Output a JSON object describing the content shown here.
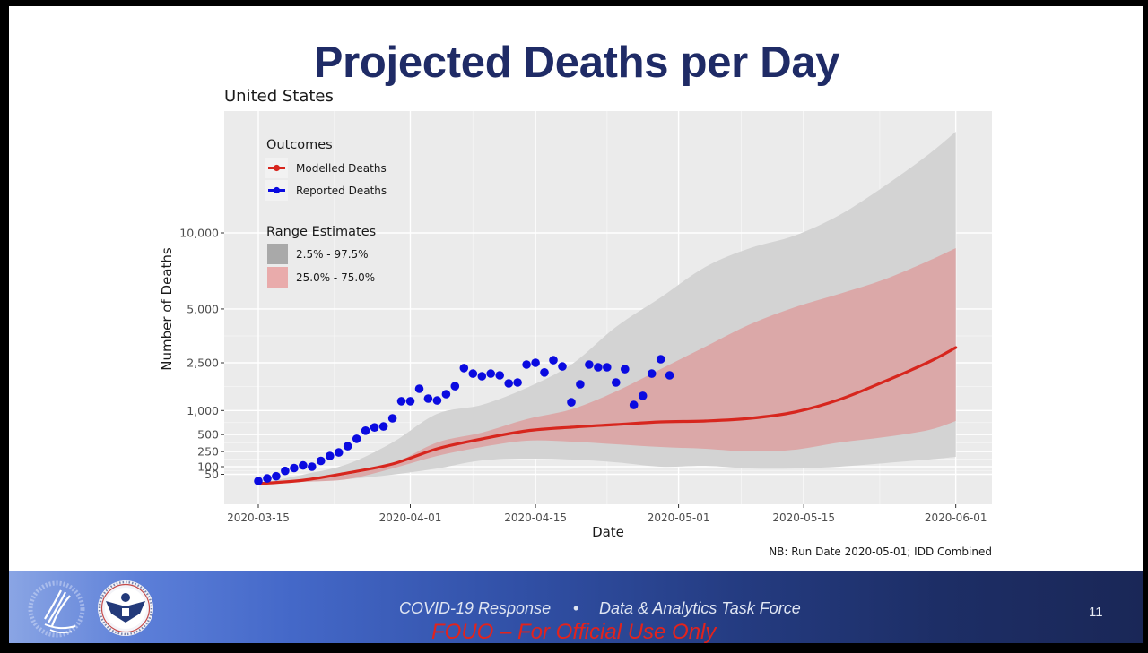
{
  "slide": {
    "title": "Projected Deaths per Day",
    "page_number": "11"
  },
  "footer": {
    "left_text": "COVID-19 Response",
    "separator": "•",
    "right_text": "Data & Analytics Task Force",
    "classification": "FOUO – For Official Use Only",
    "logos": [
      "hhs-logo",
      "dhs-seal"
    ]
  },
  "colors": {
    "title": "#1f2b66",
    "panel_background": "#ebebeb",
    "modelled_line": "#d7261e",
    "reported_points": "#0a0ae0",
    "band_2_5_97_5": "#d3d3d3",
    "band_25_75": "#dba8a8",
    "footer_dark": "#1a2757",
    "classification_red": "#e3231c"
  },
  "chart_data": {
    "type": "line",
    "title": "United States",
    "xlabel": "Date",
    "ylabel": "Number of Deaths",
    "caption": "NB: Run Date 2020-05-01; IDD Combined",
    "y_scale": "sqrt",
    "ylim": [
      0,
      21500
    ],
    "xlim": [
      "2020-03-11",
      "2020-06-05"
    ],
    "grid": true,
    "x_ticks": [
      {
        "value": "2020-03-15",
        "label": "2020-03-15"
      },
      {
        "value": "2020-04-01",
        "label": "2020-04-01"
      },
      {
        "value": "2020-04-15",
        "label": "2020-04-15"
      },
      {
        "value": "2020-05-01",
        "label": "2020-05-01"
      },
      {
        "value": "2020-05-15",
        "label": "2020-05-15"
      },
      {
        "value": "2020-06-01",
        "label": "2020-06-01"
      }
    ],
    "y_ticks": [
      {
        "value": 50,
        "label": "50"
      },
      {
        "value": 100,
        "label": "100"
      },
      {
        "value": 250,
        "label": "250"
      },
      {
        "value": 500,
        "label": "500"
      },
      {
        "value": 1000,
        "label": "1,000"
      },
      {
        "value": 2500,
        "label": "2,500"
      },
      {
        "value": 5000,
        "label": "5,000"
      },
      {
        "value": 10000,
        "label": "10,000"
      }
    ],
    "legend": {
      "placement": "top-left (inside plot)",
      "outcomes_title": "Outcomes",
      "outcomes": [
        {
          "label": "Modelled Deaths",
          "color": "#d7261e"
        },
        {
          "label": "Reported Deaths",
          "color": "#0a0ae0"
        }
      ],
      "ranges_title": "Range Estimates",
      "ranges": [
        {
          "label": "2.5% - 97.5%",
          "color": "#a9a9a9"
        },
        {
          "label": "25.0% - 75.0%",
          "color": "#e9abab"
        }
      ]
    },
    "series": [
      {
        "name": "Reported Deaths",
        "kind": "points",
        "x": [
          "2020-03-15",
          "2020-03-16",
          "2020-03-17",
          "2020-03-18",
          "2020-03-19",
          "2020-03-20",
          "2020-03-21",
          "2020-03-22",
          "2020-03-23",
          "2020-03-24",
          "2020-03-25",
          "2020-03-26",
          "2020-03-27",
          "2020-03-28",
          "2020-03-29",
          "2020-03-30",
          "2020-03-31",
          "2020-04-01",
          "2020-04-02",
          "2020-04-03",
          "2020-04-04",
          "2020-04-05",
          "2020-04-06",
          "2020-04-07",
          "2020-04-08",
          "2020-04-09",
          "2020-04-10",
          "2020-04-11",
          "2020-04-12",
          "2020-04-13",
          "2020-04-14",
          "2020-04-15",
          "2020-04-16",
          "2020-04-17",
          "2020-04-18",
          "2020-04-19",
          "2020-04-20",
          "2020-04-21",
          "2020-04-22",
          "2020-04-23",
          "2020-04-24",
          "2020-04-25",
          "2020-04-26",
          "2020-04-27",
          "2020-04-28",
          "2020-04-29",
          "2020-04-30"
        ],
        "values": [
          20,
          30,
          40,
          70,
          90,
          110,
          100,
          150,
          200,
          240,
          320,
          430,
          570,
          630,
          650,
          820,
          1240,
          1240,
          1600,
          1310,
          1260,
          1440,
          1680,
          2300,
          2100,
          2010,
          2100,
          2040,
          1770,
          1800,
          2430,
          2500,
          2140,
          2600,
          2360,
          1210,
          1740,
          2430,
          2330,
          2330,
          1800,
          2260,
          1140,
          1390,
          2100,
          2640,
          2040
        ]
      },
      {
        "name": "Modelled Deaths",
        "kind": "line",
        "x": [
          "2020-03-15",
          "2020-03-20",
          "2020-03-25",
          "2020-03-30",
          "2020-04-04",
          "2020-04-09",
          "2020-04-14",
          "2020-04-19",
          "2020-04-24",
          "2020-04-29",
          "2020-05-04",
          "2020-05-09",
          "2020-05-14",
          "2020-05-19",
          "2020-05-24",
          "2020-05-29",
          "2020-06-01"
        ],
        "values": [
          12,
          23,
          58,
          122,
          285,
          428,
          566,
          634,
          687,
          742,
          761,
          819,
          963,
          1286,
          1828,
          2535,
          3121
        ]
      },
      {
        "name": "2.5% - 97.5%",
        "kind": "band",
        "x": [
          "2020-03-15",
          "2020-03-20",
          "2020-03-25",
          "2020-03-30",
          "2020-04-04",
          "2020-04-09",
          "2020-04-14",
          "2020-04-19",
          "2020-04-24",
          "2020-04-29",
          "2020-05-04",
          "2020-05-09",
          "2020-05-14",
          "2020-05-19",
          "2020-05-24",
          "2020-05-29",
          "2020-06-01"
        ],
        "lower": [
          12,
          17,
          27,
          48,
          87,
          154,
          172,
          163,
          137,
          100,
          107,
          87,
          87,
          100,
          129,
          163,
          190
        ],
        "upper": [
          12,
          48,
          122,
          373,
          921,
          1142,
          1628,
          2431,
          4069,
          5651,
          7551,
          8862,
          9794,
          11427,
          13908,
          16990,
          19311
        ]
      },
      {
        "name": "25.0% - 75.0%",
        "kind": "band",
        "x": [
          "2020-03-15",
          "2020-03-20",
          "2020-03-25",
          "2020-03-30",
          "2020-04-04",
          "2020-04-09",
          "2020-04-14",
          "2020-04-19",
          "2020-04-24",
          "2020-04-29",
          "2020-05-04",
          "2020-05-09",
          "2020-05-14",
          "2020-05-19",
          "2020-05-24",
          "2020-05-29",
          "2020-06-01"
        ],
        "lower": [
          12,
          17,
          27,
          87,
          200,
          309,
          400,
          386,
          347,
          309,
          285,
          252,
          274,
          373,
          457,
          583,
          761
        ],
        "upper": [
          12,
          23,
          48,
          122,
          373,
          534,
          800,
          1028,
          1518,
          2264,
          3159,
          4203,
          5095,
          5860,
          6735,
          7976,
          8862
        ]
      }
    ]
  }
}
